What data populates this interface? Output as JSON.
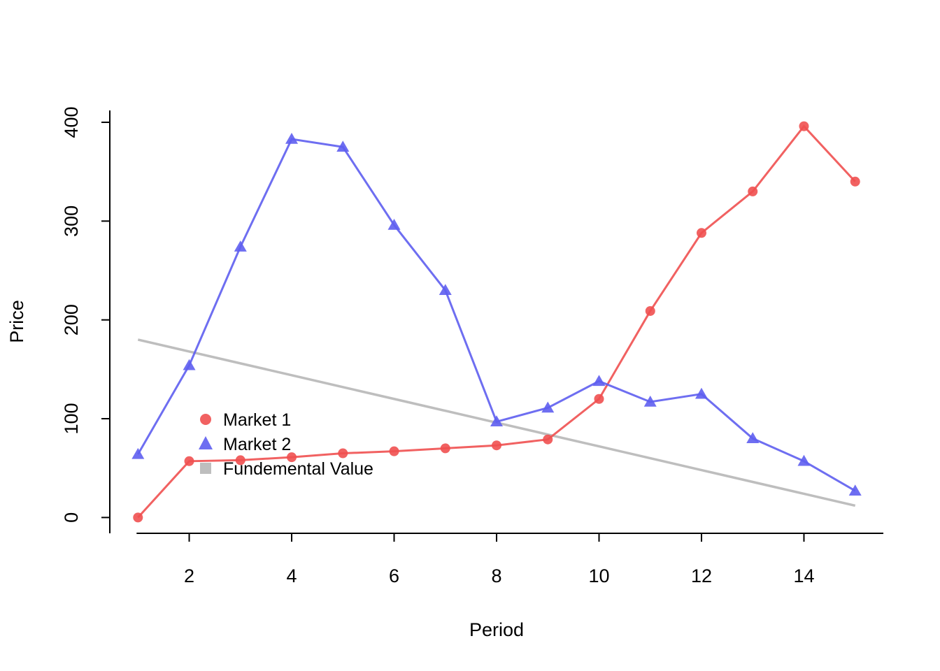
{
  "chart_data": {
    "type": "line",
    "title": "",
    "xlabel": "Period",
    "ylabel": "Price",
    "xlim": [
      0.45,
      15.55
    ],
    "ylim": [
      -16,
      412
    ],
    "x_ticks": [
      2,
      4,
      6,
      8,
      10,
      12,
      14
    ],
    "y_ticks": [
      0,
      100,
      200,
      300,
      400
    ],
    "grid": false,
    "legend_placement": "bottom-left",
    "x": [
      1,
      2,
      3,
      4,
      5,
      6,
      7,
      8,
      9,
      10,
      11,
      12,
      13,
      14,
      15
    ],
    "series": [
      {
        "name": "Market 1",
        "color": "#f05050",
        "marker": "circle",
        "values": [
          0,
          57,
          58,
          61,
          65,
          67,
          70,
          73,
          79,
          120,
          209,
          288,
          330,
          396,
          340
        ]
      },
      {
        "name": "Market 2",
        "color": "#5e5ef0",
        "marker": "triangle",
        "values": [
          64,
          154,
          274,
          383,
          375,
          296,
          230,
          97,
          111,
          138,
          117,
          125,
          80,
          57,
          27
        ]
      },
      {
        "name": "Fundemental Value",
        "color": "#bebebe",
        "marker": "square",
        "line_only": true,
        "values": [
          180,
          168,
          156,
          144,
          132,
          120,
          108,
          96,
          84,
          72,
          60,
          48,
          36,
          24,
          12
        ]
      }
    ]
  }
}
